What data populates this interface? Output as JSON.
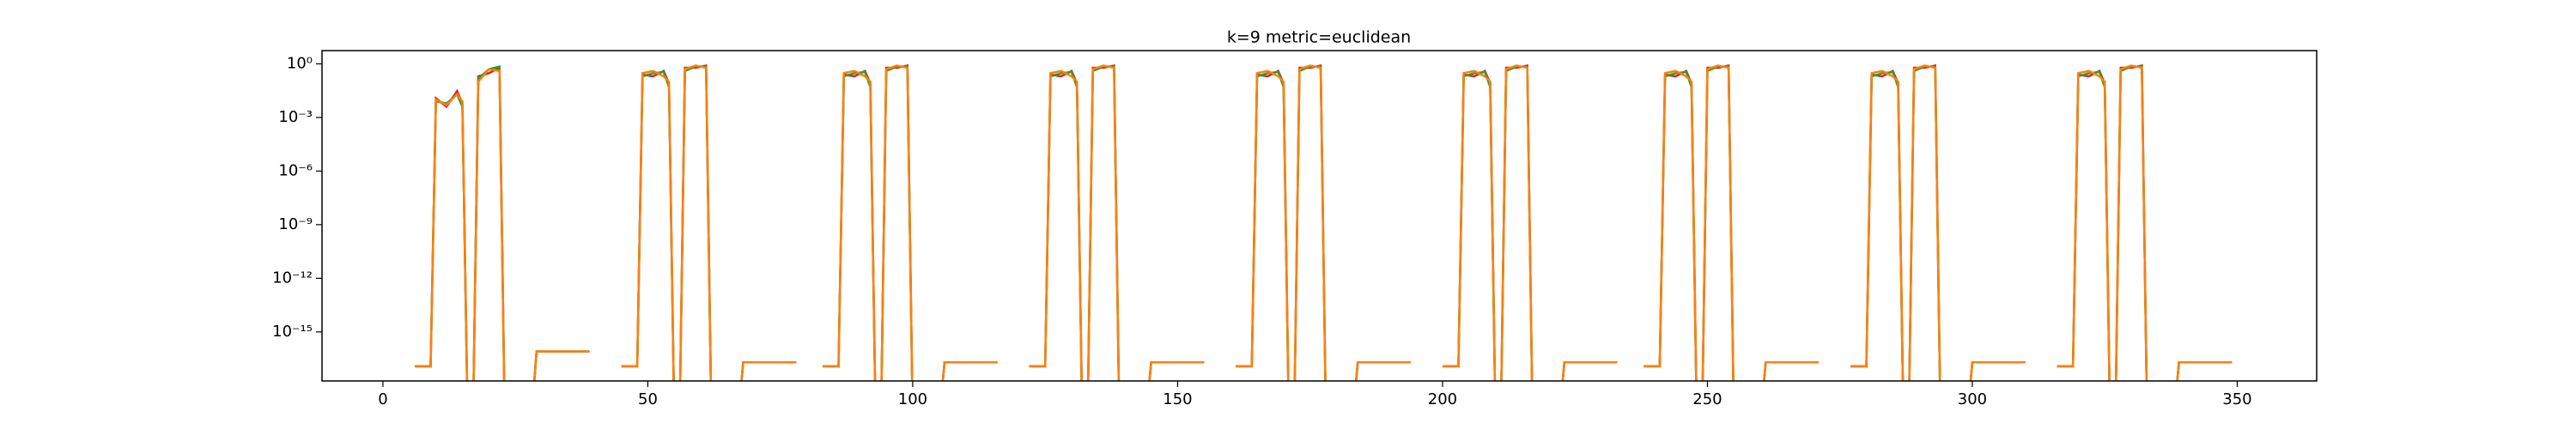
{
  "chart_data": {
    "type": "line",
    "title": "k=9 metric=euclidean",
    "log_y": true,
    "xlim": [
      -11.5,
      365
    ],
    "ylim": [
      1.8e-18,
      5.5
    ],
    "xticks": [
      0,
      50,
      100,
      150,
      200,
      250,
      300,
      350
    ],
    "yticks": [
      {
        "value": 1,
        "label": "10⁰"
      },
      {
        "value": 0.001,
        "label": "10⁻³"
      },
      {
        "value": 1e-06,
        "label": "10⁻⁶"
      },
      {
        "value": 1e-09,
        "label": "10⁻⁹"
      },
      {
        "value": 1e-12,
        "label": "10⁻¹²"
      },
      {
        "value": 1e-15,
        "label": "10⁻¹⁵"
      }
    ],
    "x": [
      6,
      9,
      10,
      12,
      14,
      15,
      16,
      17,
      18,
      20,
      22,
      23,
      28,
      29,
      39,
      41,
      45,
      48,
      49,
      51,
      53,
      54,
      55,
      56,
      57,
      59,
      61,
      62,
      67,
      68,
      78,
      80,
      83,
      86,
      87,
      89,
      91,
      92,
      93,
      94,
      95,
      97,
      99,
      100,
      105,
      106,
      116,
      118,
      122,
      125,
      126,
      128,
      130,
      131,
      132,
      133,
      134,
      136,
      138,
      139,
      144,
      145,
      155,
      157,
      161,
      164,
      165,
      167,
      169,
      170,
      171,
      172,
      173,
      175,
      177,
      178,
      183,
      184,
      194,
      196,
      200,
      203,
      204,
      206,
      208,
      209,
      210,
      211,
      212,
      214,
      216,
      217,
      222,
      223,
      233,
      235,
      238,
      241,
      242,
      244,
      246,
      247,
      248,
      249,
      250,
      252,
      254,
      255,
      260,
      261,
      271,
      273,
      277,
      280,
      281,
      283,
      285,
      286,
      287,
      288,
      289,
      291,
      293,
      294,
      299,
      300,
      310,
      312,
      316,
      319,
      320,
      322,
      324,
      325,
      326,
      327,
      328,
      330,
      332,
      333,
      338,
      339,
      349,
      351
    ],
    "series": [
      {
        "color": "#d62728",
        "values": [
          1.2e-17,
          1.2e-17,
          0.012,
          0.004,
          0.03,
          0.006,
          1e-20,
          1e-20,
          0.2,
          0.3,
          0.6,
          1e-20,
          1e-20,
          8e-17,
          8e-17,
          null,
          1.2e-17,
          1.2e-17,
          0.25,
          0.2,
          0.4,
          0.08,
          1e-20,
          1e-20,
          0.6,
          0.6,
          0.8,
          1e-20,
          1e-20,
          2e-17,
          2e-17,
          null,
          1.2e-17,
          1.2e-17,
          0.25,
          0.2,
          0.4,
          0.08,
          1e-20,
          1e-20,
          0.6,
          0.6,
          0.8,
          1e-20,
          1e-20,
          2e-17,
          2e-17,
          null,
          1.2e-17,
          1.2e-17,
          0.25,
          0.2,
          0.4,
          0.08,
          1e-20,
          1e-20,
          0.6,
          0.6,
          0.8,
          1e-20,
          1e-20,
          2e-17,
          2e-17,
          null,
          1.2e-17,
          1.2e-17,
          0.25,
          0.2,
          0.4,
          0.08,
          1e-20,
          1e-20,
          0.6,
          0.6,
          0.8,
          1e-20,
          1e-20,
          2e-17,
          2e-17,
          null,
          1.2e-17,
          1.2e-17,
          0.25,
          0.2,
          0.4,
          0.08,
          1e-20,
          1e-20,
          0.6,
          0.6,
          0.8,
          1e-20,
          1e-20,
          2e-17,
          2e-17,
          null,
          1.2e-17,
          1.2e-17,
          0.25,
          0.2,
          0.4,
          0.08,
          1e-20,
          1e-20,
          0.6,
          0.6,
          0.8,
          1e-20,
          1e-20,
          2e-17,
          2e-17,
          null,
          1.2e-17,
          1.2e-17,
          0.25,
          0.2,
          0.4,
          0.08,
          1e-20,
          1e-20,
          0.6,
          0.6,
          0.8,
          1e-20,
          1e-20,
          2e-17,
          2e-17,
          null,
          1.2e-17,
          1.2e-17,
          0.25,
          0.2,
          0.4,
          0.08,
          1e-20,
          1e-20,
          0.6,
          0.6,
          0.8,
          1e-20,
          1e-20,
          2e-17,
          2e-17,
          null
        ]
      },
      {
        "color": "#2ca02c",
        "values": [
          1.2e-17,
          1.2e-17,
          0.008,
          0.006,
          0.02,
          0.004,
          1e-20,
          1e-20,
          0.15,
          0.5,
          0.7,
          1e-20,
          1e-20,
          8e-17,
          8e-17,
          null,
          1.2e-17,
          1.2e-17,
          0.2,
          0.3,
          0.35,
          0.05,
          1e-20,
          1e-20,
          0.4,
          0.7,
          0.7,
          1e-20,
          1e-20,
          2e-17,
          2e-17,
          null,
          1.2e-17,
          1.2e-17,
          0.2,
          0.3,
          0.35,
          0.05,
          1e-20,
          1e-20,
          0.4,
          0.7,
          0.7,
          1e-20,
          1e-20,
          2e-17,
          2e-17,
          null,
          1.2e-17,
          1.2e-17,
          0.2,
          0.3,
          0.35,
          0.05,
          1e-20,
          1e-20,
          0.4,
          0.7,
          0.7,
          1e-20,
          1e-20,
          2e-17,
          2e-17,
          null,
          1.2e-17,
          1.2e-17,
          0.2,
          0.3,
          0.35,
          0.05,
          1e-20,
          1e-20,
          0.4,
          0.7,
          0.7,
          1e-20,
          1e-20,
          2e-17,
          2e-17,
          null,
          1.2e-17,
          1.2e-17,
          0.2,
          0.3,
          0.35,
          0.05,
          1e-20,
          1e-20,
          0.4,
          0.7,
          0.7,
          1e-20,
          1e-20,
          2e-17,
          2e-17,
          null,
          1.2e-17,
          1.2e-17,
          0.2,
          0.3,
          0.35,
          0.05,
          1e-20,
          1e-20,
          0.4,
          0.7,
          0.7,
          1e-20,
          1e-20,
          2e-17,
          2e-17,
          null,
          1.2e-17,
          1.2e-17,
          0.2,
          0.3,
          0.35,
          0.05,
          1e-20,
          1e-20,
          0.4,
          0.7,
          0.7,
          1e-20,
          1e-20,
          2e-17,
          2e-17,
          null,
          1.2e-17,
          1.2e-17,
          0.2,
          0.3,
          0.35,
          0.05,
          1e-20,
          1e-20,
          0.4,
          0.7,
          0.7,
          1e-20,
          1e-20,
          2e-17,
          2e-17,
          null
        ]
      },
      {
        "color": "#ff7f0e",
        "values": [
          1.2e-17,
          1.2e-17,
          0.01,
          0.005,
          0.02,
          0.008,
          1e-20,
          1e-20,
          0.1,
          0.5,
          0.4,
          1e-20,
          1e-20,
          8e-17,
          8e-17,
          null,
          1.2e-17,
          1.2e-17,
          0.3,
          0.4,
          0.2,
          0.1,
          1e-20,
          1e-20,
          0.5,
          0.8,
          0.6,
          1e-20,
          1e-20,
          2e-17,
          2e-17,
          null,
          1.2e-17,
          1.2e-17,
          0.3,
          0.4,
          0.2,
          0.1,
          1e-20,
          1e-20,
          0.5,
          0.8,
          0.6,
          1e-20,
          1e-20,
          2e-17,
          2e-17,
          null,
          1.2e-17,
          1.2e-17,
          0.3,
          0.4,
          0.2,
          0.1,
          1e-20,
          1e-20,
          0.5,
          0.8,
          0.6,
          1e-20,
          1e-20,
          2e-17,
          2e-17,
          null,
          1.2e-17,
          1.2e-17,
          0.3,
          0.4,
          0.2,
          0.1,
          1e-20,
          1e-20,
          0.5,
          0.8,
          0.6,
          1e-20,
          1e-20,
          2e-17,
          2e-17,
          null,
          1.2e-17,
          1.2e-17,
          0.3,
          0.4,
          0.2,
          0.1,
          1e-20,
          1e-20,
          0.5,
          0.8,
          0.6,
          1e-20,
          1e-20,
          2e-17,
          2e-17,
          null,
          1.2e-17,
          1.2e-17,
          0.3,
          0.4,
          0.2,
          0.1,
          1e-20,
          1e-20,
          0.5,
          0.8,
          0.6,
          1e-20,
          1e-20,
          2e-17,
          2e-17,
          null,
          1.2e-17,
          1.2e-17,
          0.3,
          0.4,
          0.2,
          0.1,
          1e-20,
          1e-20,
          0.5,
          0.8,
          0.6,
          1e-20,
          1e-20,
          2e-17,
          2e-17,
          null,
          1.2e-17,
          1.2e-17,
          0.3,
          0.4,
          0.2,
          0.1,
          1e-20,
          1e-20,
          0.5,
          0.8,
          0.6,
          1e-20,
          1e-20,
          2e-17,
          2e-17,
          null
        ]
      }
    ]
  }
}
